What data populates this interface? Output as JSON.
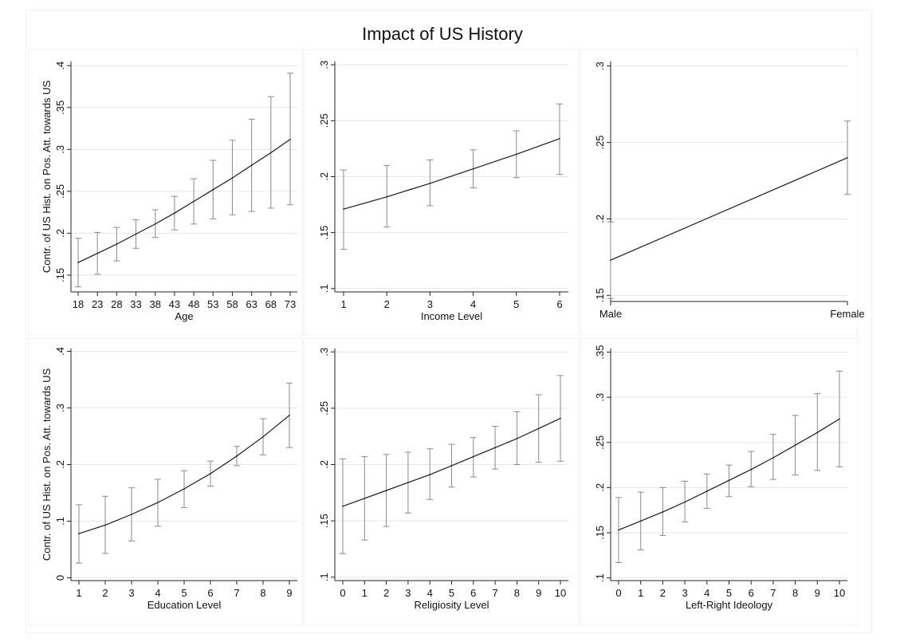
{
  "title": "Impact of US History",
  "ylabel": "Contr. of US Hist. on Pos. Att. towards US",
  "chart_data": [
    {
      "type": "line",
      "xlabel": "Age",
      "ylabel": "Contr. of US Hist. on Pos. Att. towards US",
      "x": [
        18,
        23,
        28,
        33,
        38,
        43,
        48,
        53,
        58,
        63,
        68,
        73
      ],
      "xticks": [
        "18",
        "23",
        "28",
        "33",
        "38",
        "43",
        "48",
        "53",
        "58",
        "63",
        "68",
        "73"
      ],
      "yticks": [
        ".15",
        ".2",
        ".25",
        ".3",
        ".35",
        ".4"
      ],
      "ytick_values": [
        0.15,
        0.2,
        0.25,
        0.3,
        0.35,
        0.4
      ],
      "ylim": [
        0.13,
        0.405
      ],
      "y": [
        0.165,
        0.176,
        0.187,
        0.199,
        0.211,
        0.224,
        0.238,
        0.252,
        0.266,
        0.281,
        0.296,
        0.312
      ],
      "ci_low": [
        0.136,
        0.151,
        0.167,
        0.182,
        0.195,
        0.204,
        0.211,
        0.217,
        0.222,
        0.226,
        0.23,
        0.234
      ],
      "ci_high": [
        0.194,
        0.201,
        0.207,
        0.216,
        0.228,
        0.244,
        0.265,
        0.287,
        0.311,
        0.336,
        0.363,
        0.391
      ],
      "grid": true
    },
    {
      "type": "line",
      "xlabel": "Income Level",
      "ylabel": "",
      "x": [
        1,
        2,
        3,
        4,
        5,
        6
      ],
      "xticks": [
        "1",
        "2",
        "3",
        "4",
        "5",
        "6"
      ],
      "yticks": [
        ".1",
        ".15",
        ".2",
        ".25",
        ".3"
      ],
      "ytick_values": [
        0.1,
        0.15,
        0.2,
        0.25,
        0.3
      ],
      "ylim": [
        0.097,
        0.303
      ],
      "y": [
        0.171,
        0.182,
        0.194,
        0.207,
        0.22,
        0.234
      ],
      "ci_low": [
        0.135,
        0.155,
        0.174,
        0.19,
        0.199,
        0.202
      ],
      "ci_high": [
        0.206,
        0.21,
        0.215,
        0.224,
        0.241,
        0.265
      ],
      "grid": true
    },
    {
      "type": "line",
      "xlabel": "",
      "ylabel": "",
      "x": [
        0,
        1
      ],
      "xticks": [
        "Male",
        "Female"
      ],
      "yticks": [
        ".15",
        ".2",
        ".25",
        ".3"
      ],
      "ytick_values": [
        0.15,
        0.2,
        0.25,
        0.3
      ],
      "ylim": [
        0.146,
        0.303
      ],
      "y": [
        0.173,
        0.24
      ],
      "ci_low": [
        0.148,
        0.216
      ],
      "ci_high": [
        0.198,
        0.264
      ],
      "grid": true
    },
    {
      "type": "line",
      "xlabel": "Education Level",
      "ylabel": "Contr. of US Hist. on Pos. Att. towards US",
      "x": [
        1,
        2,
        3,
        4,
        5,
        6,
        7,
        8,
        9
      ],
      "xticks": [
        "1",
        "2",
        "3",
        "4",
        "5",
        "6",
        "7",
        "8",
        "9"
      ],
      "yticks": [
        "0",
        ".1",
        ".2",
        ".3",
        ".4"
      ],
      "ytick_values": [
        0,
        0.1,
        0.2,
        0.3,
        0.4
      ],
      "ylim": [
        -0.005,
        0.405
      ],
      "y": [
        0.078,
        0.093,
        0.112,
        0.133,
        0.157,
        0.184,
        0.215,
        0.249,
        0.287
      ],
      "ci_low": [
        0.026,
        0.043,
        0.065,
        0.091,
        0.124,
        0.162,
        0.198,
        0.217,
        0.23
      ],
      "ci_high": [
        0.129,
        0.144,
        0.159,
        0.174,
        0.189,
        0.206,
        0.232,
        0.281,
        0.344
      ],
      "grid": true
    },
    {
      "type": "line",
      "xlabel": "Religiosity Level",
      "ylabel": "",
      "x": [
        0,
        1,
        2,
        3,
        4,
        5,
        6,
        7,
        8,
        9,
        10
      ],
      "xticks": [
        "0",
        "1",
        "2",
        "3",
        "4",
        "5",
        "6",
        "7",
        "8",
        "9",
        "10"
      ],
      "yticks": [
        ".1",
        ".15",
        ".2",
        ".25",
        ".3"
      ],
      "ytick_values": [
        0.1,
        0.15,
        0.2,
        0.25,
        0.3
      ],
      "ylim": [
        0.097,
        0.303
      ],
      "y": [
        0.163,
        0.17,
        0.177,
        0.184,
        0.191,
        0.199,
        0.207,
        0.215,
        0.223,
        0.232,
        0.241
      ],
      "ci_low": [
        0.121,
        0.133,
        0.145,
        0.157,
        0.169,
        0.18,
        0.189,
        0.196,
        0.2,
        0.202,
        0.203
      ],
      "ci_high": [
        0.205,
        0.207,
        0.209,
        0.211,
        0.214,
        0.218,
        0.224,
        0.234,
        0.247,
        0.262,
        0.279
      ],
      "grid": true
    },
    {
      "type": "line",
      "xlabel": "Left-Right Ideology",
      "ylabel": "",
      "x": [
        0,
        1,
        2,
        3,
        4,
        5,
        6,
        7,
        8,
        9,
        10
      ],
      "xticks": [
        "0",
        "1",
        "2",
        "3",
        "4",
        "5",
        "6",
        "7",
        "8",
        "9",
        "10"
      ],
      "yticks": [
        ".1",
        ".15",
        ".2",
        ".25",
        ".3",
        ".35"
      ],
      "ytick_values": [
        0.1,
        0.15,
        0.2,
        0.25,
        0.3,
        0.35
      ],
      "ylim": [
        0.097,
        0.354
      ],
      "y": [
        0.153,
        0.163,
        0.173,
        0.184,
        0.196,
        0.208,
        0.22,
        0.233,
        0.247,
        0.261,
        0.276
      ],
      "ci_low": [
        0.117,
        0.131,
        0.147,
        0.162,
        0.177,
        0.19,
        0.201,
        0.209,
        0.214,
        0.219,
        0.223
      ],
      "ci_high": [
        0.189,
        0.195,
        0.2,
        0.207,
        0.215,
        0.225,
        0.24,
        0.259,
        0.28,
        0.304,
        0.329
      ],
      "grid": true
    }
  ]
}
